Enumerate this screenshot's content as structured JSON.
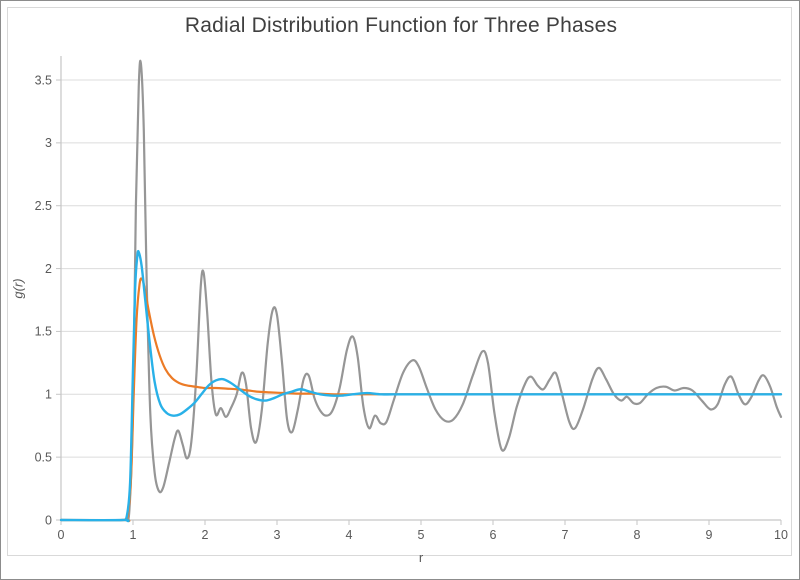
{
  "chart": {
    "title": "Radial Distribution Function for Three Phases",
    "xlabel": "r",
    "ylabel": "g(r)"
  },
  "chart_data": {
    "type": "line",
    "title": "Radial Distribution Function for Three Phases",
    "xlabel": "r",
    "ylabel": "g(r)",
    "xlim": [
      0,
      10
    ],
    "ylim": [
      0,
      3.69
    ],
    "x_ticks": [
      0,
      1,
      2,
      3,
      4,
      5,
      6,
      7,
      8,
      9,
      10
    ],
    "y_ticks": [
      0,
      0.5,
      1,
      1.5,
      2,
      2.5,
      3,
      3.5
    ],
    "grid": "horizontal-only",
    "legend": "none",
    "colors": {
      "gridline": "#dcdcdc",
      "axis_line": "#c6c6c6",
      "tick_label": "#595959",
      "title_text": "#404040"
    },
    "series": [
      {
        "name": "series-gray",
        "color": "#969696",
        "width": 2.2,
        "points": [
          [
            0,
            0
          ],
          [
            0.85,
            0
          ],
          [
            0.9,
            0.01
          ],
          [
            0.95,
            0.08
          ],
          [
            1.0,
            0.9
          ],
          [
            1.04,
            2.5
          ],
          [
            1.08,
            3.45
          ],
          [
            1.11,
            3.63
          ],
          [
            1.15,
            3.1
          ],
          [
            1.19,
            1.9
          ],
          [
            1.24,
            0.85
          ],
          [
            1.3,
            0.38
          ],
          [
            1.36,
            0.23
          ],
          [
            1.42,
            0.26
          ],
          [
            1.5,
            0.45
          ],
          [
            1.58,
            0.65
          ],
          [
            1.63,
            0.71
          ],
          [
            1.69,
            0.6
          ],
          [
            1.75,
            0.49
          ],
          [
            1.81,
            0.62
          ],
          [
            1.88,
            1.15
          ],
          [
            1.94,
            1.85
          ],
          [
            1.98,
            1.97
          ],
          [
            2.03,
            1.65
          ],
          [
            2.09,
            1.1
          ],
          [
            2.15,
            0.84
          ],
          [
            2.22,
            0.89
          ],
          [
            2.29,
            0.82
          ],
          [
            2.36,
            0.89
          ],
          [
            2.44,
            1.0
          ],
          [
            2.51,
            1.17
          ],
          [
            2.57,
            1.08
          ],
          [
            2.64,
            0.73
          ],
          [
            2.71,
            0.62
          ],
          [
            2.79,
            0.88
          ],
          [
            2.87,
            1.4
          ],
          [
            2.94,
            1.67
          ],
          [
            3.0,
            1.63
          ],
          [
            3.07,
            1.25
          ],
          [
            3.14,
            0.8
          ],
          [
            3.21,
            0.7
          ],
          [
            3.29,
            0.88
          ],
          [
            3.37,
            1.12
          ],
          [
            3.44,
            1.15
          ],
          [
            3.52,
            0.97
          ],
          [
            3.6,
            0.87
          ],
          [
            3.68,
            0.83
          ],
          [
            3.77,
            0.87
          ],
          [
            3.87,
            1.05
          ],
          [
            3.97,
            1.35
          ],
          [
            4.05,
            1.46
          ],
          [
            4.12,
            1.3
          ],
          [
            4.2,
            0.9
          ],
          [
            4.28,
            0.73
          ],
          [
            4.36,
            0.83
          ],
          [
            4.44,
            0.77
          ],
          [
            4.52,
            0.78
          ],
          [
            4.62,
            0.95
          ],
          [
            4.75,
            1.17
          ],
          [
            4.88,
            1.27
          ],
          [
            4.97,
            1.22
          ],
          [
            5.08,
            1.05
          ],
          [
            5.2,
            0.88
          ],
          [
            5.33,
            0.79
          ],
          [
            5.45,
            0.8
          ],
          [
            5.58,
            0.92
          ],
          [
            5.72,
            1.15
          ],
          [
            5.85,
            1.34
          ],
          [
            5.93,
            1.25
          ],
          [
            6.02,
            0.85
          ],
          [
            6.12,
            0.56
          ],
          [
            6.22,
            0.65
          ],
          [
            6.33,
            0.9
          ],
          [
            6.45,
            1.09
          ],
          [
            6.53,
            1.14
          ],
          [
            6.62,
            1.07
          ],
          [
            6.7,
            1.04
          ],
          [
            6.79,
            1.12
          ],
          [
            6.87,
            1.17
          ],
          [
            6.95,
            1.02
          ],
          [
            7.06,
            0.78
          ],
          [
            7.14,
            0.73
          ],
          [
            7.25,
            0.88
          ],
          [
            7.38,
            1.12
          ],
          [
            7.47,
            1.21
          ],
          [
            7.57,
            1.12
          ],
          [
            7.68,
            1.0
          ],
          [
            7.78,
            0.95
          ],
          [
            7.86,
            0.98
          ],
          [
            7.95,
            0.93
          ],
          [
            8.04,
            0.93
          ],
          [
            8.15,
            1.0
          ],
          [
            8.27,
            1.05
          ],
          [
            8.4,
            1.06
          ],
          [
            8.52,
            1.03
          ],
          [
            8.65,
            1.05
          ],
          [
            8.77,
            1.03
          ],
          [
            8.9,
            0.95
          ],
          [
            9.02,
            0.88
          ],
          [
            9.12,
            0.92
          ],
          [
            9.22,
            1.08
          ],
          [
            9.31,
            1.14
          ],
          [
            9.41,
            1.0
          ],
          [
            9.5,
            0.92
          ],
          [
            9.59,
            0.98
          ],
          [
            9.69,
            1.11
          ],
          [
            9.76,
            1.15
          ],
          [
            9.85,
            1.06
          ],
          [
            9.94,
            0.9
          ],
          [
            10.0,
            0.82
          ]
        ]
      },
      {
        "name": "series-orange",
        "color": "#ec7b26",
        "width": 2.2,
        "points": [
          [
            0,
            0
          ],
          [
            0.87,
            0
          ],
          [
            0.92,
            0.02
          ],
          [
            0.97,
            0.3
          ],
          [
            1.01,
            1.0
          ],
          [
            1.05,
            1.6
          ],
          [
            1.09,
            1.87
          ],
          [
            1.12,
            1.92
          ],
          [
            1.16,
            1.85
          ],
          [
            1.22,
            1.66
          ],
          [
            1.29,
            1.47
          ],
          [
            1.37,
            1.31
          ],
          [
            1.45,
            1.2
          ],
          [
            1.54,
            1.13
          ],
          [
            1.64,
            1.09
          ],
          [
            1.75,
            1.07
          ],
          [
            1.87,
            1.06
          ],
          [
            2.0,
            1.05
          ],
          [
            2.15,
            1.05
          ],
          [
            2.3,
            1.045
          ],
          [
            2.45,
            1.04
          ],
          [
            2.6,
            1.03
          ],
          [
            2.75,
            1.02
          ],
          [
            2.9,
            1.015
          ],
          [
            3.1,
            1.01
          ],
          [
            3.3,
            1.005
          ],
          [
            3.55,
            1.005
          ],
          [
            3.8,
            1.0
          ],
          [
            4.1,
            1.0
          ],
          [
            4.5,
            1.0
          ],
          [
            5.0,
            1.0
          ],
          [
            5.5,
            1.0
          ],
          [
            6.0,
            1.0
          ],
          [
            6.5,
            1.0
          ],
          [
            7.0,
            1.0
          ],
          [
            7.5,
            1.0
          ],
          [
            8.0,
            1.0
          ],
          [
            8.5,
            1.0
          ],
          [
            9.0,
            1.0
          ],
          [
            9.5,
            1.0
          ],
          [
            10.0,
            1.0
          ]
        ]
      },
      {
        "name": "series-blue",
        "color": "#29b1e8",
        "width": 2.4,
        "points": [
          [
            0,
            0
          ],
          [
            0.86,
            0
          ],
          [
            0.91,
            0.02
          ],
          [
            0.96,
            0.3
          ],
          [
            1.0,
            1.2
          ],
          [
            1.03,
            1.85
          ],
          [
            1.06,
            2.1
          ],
          [
            1.08,
            2.13
          ],
          [
            1.12,
            2.02
          ],
          [
            1.17,
            1.75
          ],
          [
            1.23,
            1.42
          ],
          [
            1.3,
            1.1
          ],
          [
            1.38,
            0.92
          ],
          [
            1.47,
            0.85
          ],
          [
            1.56,
            0.83
          ],
          [
            1.65,
            0.84
          ],
          [
            1.75,
            0.88
          ],
          [
            1.85,
            0.93
          ],
          [
            1.95,
            1.0
          ],
          [
            2.05,
            1.07
          ],
          [
            2.15,
            1.11
          ],
          [
            2.25,
            1.12
          ],
          [
            2.36,
            1.09
          ],
          [
            2.48,
            1.04
          ],
          [
            2.6,
            0.99
          ],
          [
            2.72,
            0.96
          ],
          [
            2.84,
            0.95
          ],
          [
            2.96,
            0.97
          ],
          [
            3.08,
            1.0
          ],
          [
            3.2,
            1.02
          ],
          [
            3.33,
            1.04
          ],
          [
            3.46,
            1.02
          ],
          [
            3.6,
            1.0
          ],
          [
            3.75,
            0.99
          ],
          [
            3.9,
            0.99
          ],
          [
            4.05,
            1.0
          ],
          [
            4.25,
            1.01
          ],
          [
            4.45,
            1.0
          ],
          [
            4.7,
            1.0
          ],
          [
            5.0,
            1.0
          ],
          [
            5.4,
            1.0
          ],
          [
            5.8,
            1.0
          ],
          [
            6.2,
            1.0
          ],
          [
            6.6,
            1.0
          ],
          [
            7.0,
            1.0
          ],
          [
            7.5,
            1.0
          ],
          [
            8.0,
            1.0
          ],
          [
            8.5,
            1.0
          ],
          [
            9.0,
            1.0
          ],
          [
            9.5,
            1.0
          ],
          [
            10.0,
            1.0
          ]
        ]
      }
    ]
  }
}
